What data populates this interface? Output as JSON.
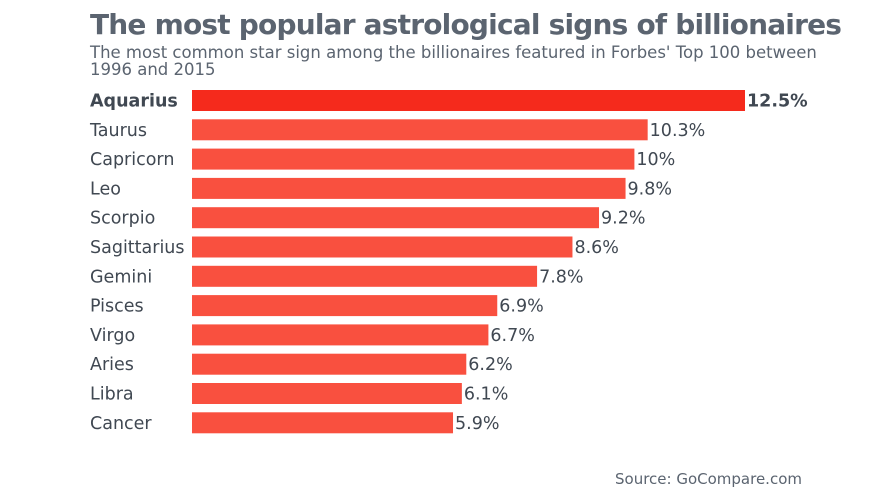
{
  "title": "The most popular astrological signs of billionaires",
  "subtitle": "The most common star sign among the billionaires featured in Forbes' Top 100 between 1996 and 2015",
  "source": "Source: GoCompare.com",
  "colors": {
    "bar": "#f9503f",
    "highlight_bar": "#f52a1c",
    "text": "#404852",
    "title": "#5b6470"
  },
  "chart_data": {
    "type": "bar",
    "orientation": "horizontal",
    "title": "The most popular astrological signs of billionaires",
    "subtitle": "The most common star sign among the billionaires featured in Forbes' Top 100 between 1996 and 2015",
    "categories": [
      "Aquarius",
      "Taurus",
      "Capricorn",
      "Leo",
      "Scorpio",
      "Sagittarius",
      "Gemini",
      "Pisces",
      "Virgo",
      "Aries",
      "Libra",
      "Cancer"
    ],
    "values": [
      12.5,
      10.3,
      10,
      9.8,
      9.2,
      8.6,
      7.8,
      6.9,
      6.7,
      6.2,
      6.1,
      5.9
    ],
    "value_labels": [
      "12.5%",
      "10.3%",
      "10%",
      "9.8%",
      "9.2%",
      "8.6%",
      "7.8%",
      "6.9%",
      "6.7%",
      "6.2%",
      "6.1%",
      "5.9%"
    ],
    "highlight": "Aquarius",
    "unit": "%",
    "xlim": [
      0,
      12.5
    ],
    "grid": false,
    "legend": "none"
  }
}
